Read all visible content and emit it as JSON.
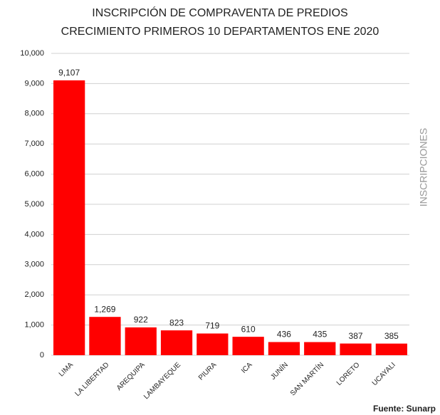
{
  "chart_data": {
    "type": "bar",
    "title": [
      "INSCRIPCIÓN DE COMPRAVENTA DE PREDIOS",
      "CRECIMIENTO PRIMEROS 10 DEPARTAMENTOS ENE 2020"
    ],
    "y_label": "INSCRIPCIONES",
    "source": "Fuente: Sunarp",
    "categories": [
      "LIMA",
      "LA LIBERTAD",
      "AREQUIPA",
      "LAMBAYEQUE",
      "PIURA",
      "ICA",
      "JUNÍN",
      "SAN MARTÍN",
      "LORETO",
      "UCAYALI"
    ],
    "values": [
      9107,
      1269,
      922,
      823,
      719,
      610,
      436,
      435,
      387,
      385
    ],
    "value_labels": [
      "9,107",
      "1,269",
      "922",
      "823",
      "719",
      "610",
      "436",
      "435",
      "387",
      "385"
    ],
    "color": "#ff0000",
    "ylim": [
      0,
      10000
    ],
    "yticks": [
      0,
      {
        "value": 1000,
        "label": "1,000"
      },
      {
        "value": 2000,
        "label": "2,000"
      },
      {
        "value": 3000,
        "label": "3,000"
      },
      {
        "value": 4000,
        "label": "4,000"
      },
      {
        "value": 5000,
        "label": "5,000"
      },
      {
        "value": 6000,
        "label": "6,000"
      },
      {
        "value": 7000,
        "label": "7,000"
      },
      {
        "value": 8000,
        "label": "8,000"
      },
      {
        "value": 9000,
        "label": "9,000"
      },
      {
        "value": 10000,
        "label": "10,000"
      }
    ],
    "grid": true
  }
}
